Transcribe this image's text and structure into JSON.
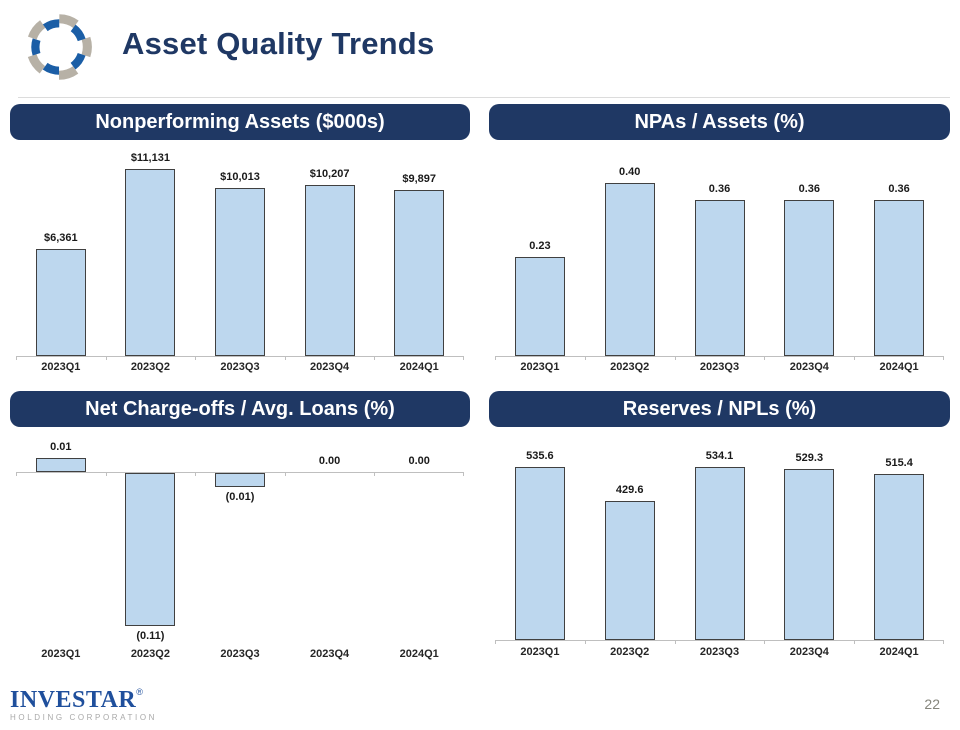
{
  "header": {
    "title": "Asset Quality Trends"
  },
  "footer": {
    "brand": "INVESTAR",
    "registered": "®",
    "tagline": "HOLDING CORPORATION",
    "page_number": "22"
  },
  "colors": {
    "navy": "#1F3864",
    "header_text": "#1F3864",
    "bar_fill": "#BDD7EE",
    "bar_border": "#404040",
    "axis": "#BFBFBF",
    "brand_blue": "#1F4F9C",
    "tagline_gray": "#A9A9A9",
    "page_number_gray": "#85857C",
    "logo_blue": "#1B5EA6",
    "logo_gray": "#B7B1A6"
  },
  "chart_data": [
    {
      "type": "bar",
      "title": "Nonperforming Assets ($000s)",
      "categories": [
        "2023Q1",
        "2023Q2",
        "2023Q3",
        "2023Q4",
        "2024Q1"
      ],
      "values": [
        6361,
        11131,
        10013,
        10207,
        9897
      ],
      "labels": [
        "$6,361",
        "$11,131",
        "$10,013",
        "$10,207",
        "$9,897"
      ],
      "xlabel": "",
      "ylabel": "",
      "ylim": [
        0,
        12000
      ],
      "grid": false,
      "legend": "none"
    },
    {
      "type": "bar",
      "title": "NPAs / Assets (%)",
      "categories": [
        "2023Q1",
        "2023Q2",
        "2023Q3",
        "2023Q4",
        "2024Q1"
      ],
      "values": [
        0.23,
        0.4,
        0.36,
        0.36,
        0.36
      ],
      "labels": [
        "0.23",
        "0.40",
        "0.36",
        "0.36",
        "0.36"
      ],
      "xlabel": "",
      "ylabel": "",
      "ylim": [
        0,
        0.45
      ],
      "grid": false,
      "legend": "none"
    },
    {
      "type": "bar",
      "title": "Net Charge-offs / Avg. Loans (%)",
      "categories": [
        "2023Q1",
        "2023Q2",
        "2023Q3",
        "2023Q4",
        "2024Q1"
      ],
      "values": [
        0.01,
        -0.11,
        -0.01,
        0.0,
        0.0
      ],
      "labels": [
        "0.01",
        "(0.11)",
        "(0.01)",
        "0.00",
        "0.00"
      ],
      "xlabel": "",
      "ylabel": "",
      "ylim": [
        -0.12,
        0.02
      ],
      "grid": false,
      "legend": "none"
    },
    {
      "type": "bar",
      "title": "Reserves / NPLs (%)",
      "categories": [
        "2023Q1",
        "2023Q2",
        "2023Q3",
        "2023Q4",
        "2024Q1"
      ],
      "values": [
        535.6,
        429.6,
        534.1,
        529.3,
        515.4
      ],
      "labels": [
        "535.6",
        "429.6",
        "534.1",
        "529.3",
        "515.4"
      ],
      "xlabel": "",
      "ylabel": "",
      "ylim": [
        0,
        600
      ],
      "grid": false,
      "legend": "none"
    }
  ]
}
